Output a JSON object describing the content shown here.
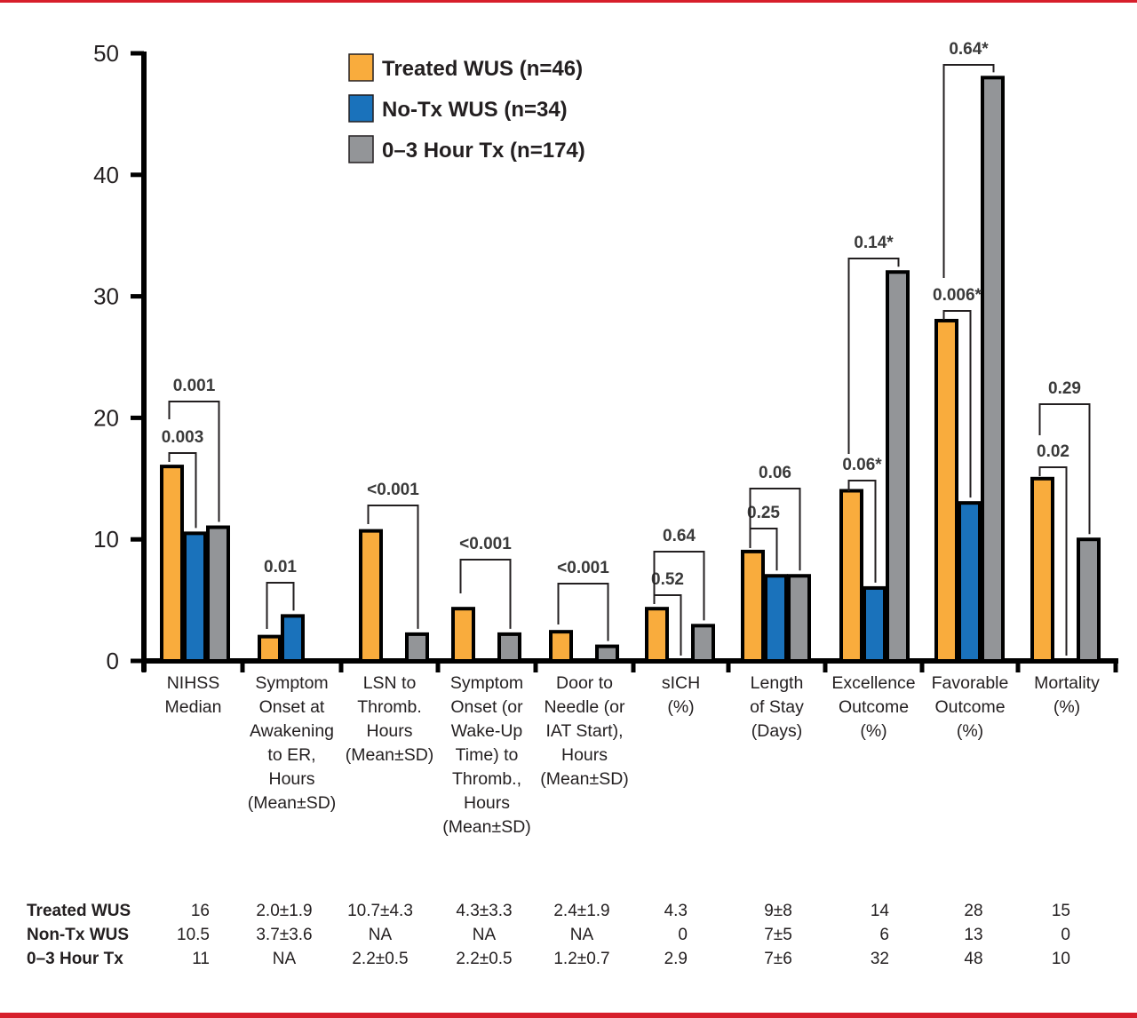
{
  "chart_data": {
    "type": "bar",
    "title": "",
    "xlabel": "",
    "ylabel": "",
    "ylim": [
      0,
      50
    ],
    "yticks": [
      "0",
      "10",
      "20",
      "30",
      "40",
      "50"
    ],
    "grid": false,
    "legend_position": "top-center",
    "categories": [
      [
        "NIHSS",
        "Median"
      ],
      [
        "Symptom",
        "Onset at",
        "Awakening",
        "to ER,",
        "Hours",
        "(Mean±SD)"
      ],
      [
        "LSN to",
        "Thromb.",
        "Hours",
        "(Mean±SD)"
      ],
      [
        "Symptom",
        "Onset (or",
        "Wake-Up",
        "Time) to",
        "Thromb.,",
        "Hours",
        "(Mean±SD)"
      ],
      [
        "Door to",
        "Needle (or",
        "IAT Start),",
        "Hours",
        "(Mean±SD)"
      ],
      [
        "sICH",
        "(%)"
      ],
      [
        "Length",
        "of Stay",
        "(Days)"
      ],
      [
        "Excellence",
        "Outcome",
        "(%)"
      ],
      [
        "Favorable",
        "Outcome",
        "(%)"
      ],
      [
        "Mortality",
        "(%)"
      ]
    ],
    "series": [
      {
        "name": "Treated WUS (n=46)",
        "color": "#f9ac3d",
        "values": [
          16,
          2.0,
          10.7,
          4.3,
          2.4,
          4.3,
          9,
          14,
          28,
          15
        ]
      },
      {
        "name": "No-Tx WUS (n=34)",
        "color": "#1a72bb",
        "values": [
          10.5,
          3.7,
          null,
          null,
          null,
          0,
          7,
          6,
          13,
          0
        ]
      },
      {
        "name": "0–3 Hour Tx (n=174)",
        "color": "#939598",
        "values": [
          11,
          null,
          2.2,
          2.2,
          1.2,
          2.9,
          7,
          32,
          48,
          10
        ]
      }
    ],
    "annotations": [
      {
        "category": 0,
        "from": 0,
        "to": 1,
        "label": "0.003"
      },
      {
        "category": 0,
        "from": 0,
        "to": 2,
        "label": "0.001"
      },
      {
        "category": 1,
        "from": 0,
        "to": 1,
        "label": "0.01"
      },
      {
        "category": 2,
        "from": 0,
        "to": 2,
        "label": "<0.001"
      },
      {
        "category": 3,
        "from": 0,
        "to": 2,
        "label": "<0.001"
      },
      {
        "category": 4,
        "from": 0,
        "to": 2,
        "label": "<0.001"
      },
      {
        "category": 5,
        "from": 0,
        "to": 1,
        "label": "0.52"
      },
      {
        "category": 5,
        "from": 0,
        "to": 2,
        "label": "0.64"
      },
      {
        "category": 6,
        "from": 0,
        "to": 1,
        "label": "0.25"
      },
      {
        "category": 6,
        "from": 0,
        "to": 2,
        "label": "0.06"
      },
      {
        "category": 7,
        "from": 0,
        "to": 1,
        "label": "0.06*"
      },
      {
        "category": 7,
        "from": 0,
        "to": 2,
        "label": "0.14*"
      },
      {
        "category": 8,
        "from": 0,
        "to": 1,
        "label": "0.006*"
      },
      {
        "category": 8,
        "from": 0,
        "to": 2,
        "label": "0.64*"
      },
      {
        "category": 9,
        "from": 0,
        "to": 1,
        "label": "0.02"
      },
      {
        "category": 9,
        "from": 0,
        "to": 2,
        "label": "0.29"
      }
    ]
  },
  "legend": [
    {
      "label": "Treated WUS (n=46)",
      "color": "#f9ac3d"
    },
    {
      "label": "No-Tx WUS (n=34)",
      "color": "#1a72bb"
    },
    {
      "label": "0–3 Hour Tx (n=174)",
      "color": "#939598"
    }
  ],
  "table": {
    "rows": [
      {
        "label": "Treated WUS",
        "cells": [
          "16",
          "2.0±1.9",
          "10.7±4.3",
          "4.3±3.3",
          "2.4±1.9",
          "4.3",
          "9±8",
          "14",
          "28",
          "15"
        ]
      },
      {
        "label": "Non-Tx WUS",
        "cells": [
          "10.5",
          "3.7±3.6",
          "NA",
          "NA",
          "NA",
          "0",
          "7±5",
          "6",
          "13",
          "0"
        ]
      },
      {
        "label": "0–3 Hour Tx",
        "cells": [
          "11",
          "NA",
          "2.2±0.5",
          "2.2±0.5",
          "1.2±0.7",
          "2.9",
          "7±6",
          "32",
          "48",
          "10"
        ]
      }
    ]
  },
  "frame_color": "#d71f2b"
}
